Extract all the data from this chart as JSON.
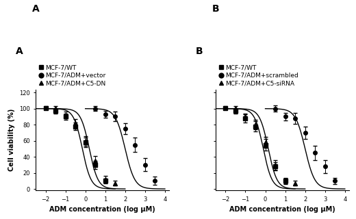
{
  "panel_A": {
    "label": "A",
    "legend": [
      "MCF-7/WT",
      "MCF-7/ADM+vector",
      "MCF-7/ADM+C5-DN"
    ],
    "markers": [
      "s",
      "o",
      "^"
    ],
    "series": [
      {
        "name": "MCF-7/WT",
        "x": [
          -2.0,
          -1.5,
          -1.0,
          -0.5,
          0.0,
          0.5,
          1.0
        ],
        "y": [
          101,
          97,
          90,
          78,
          58,
          30,
          10
        ],
        "yerr": [
          2,
          3,
          4,
          5,
          6,
          5,
          3
        ],
        "x50": -0.15,
        "slope": 2.0
      },
      {
        "name": "MCF-7/ADM+vector",
        "x": [
          0.5,
          1.0,
          1.5,
          2.0,
          2.5,
          3.0,
          3.5
        ],
        "y": [
          100,
          93,
          90,
          75,
          55,
          30,
          10
        ],
        "yerr": [
          3,
          4,
          6,
          7,
          9,
          8,
          5
        ],
        "x50": 2.0,
        "slope": 1.8
      },
      {
        "name": "MCF-7/ADM+C5-DN",
        "x": [
          -1.5,
          -1.0,
          -0.5,
          0.0,
          0.5,
          1.0,
          1.5
        ],
        "y": [
          101,
          92,
          82,
          60,
          35,
          12,
          7
        ],
        "yerr": [
          2,
          4,
          5,
          6,
          6,
          4,
          3
        ],
        "x50": 0.2,
        "slope": 2.0
      }
    ]
  },
  "panel_B": {
    "label": "B",
    "legend": [
      "MCF-7/WT",
      "MCF-7/ADM+scrambled",
      "MCF-7/ADM+C5-siRNA"
    ],
    "markers": [
      "s",
      "o",
      "^"
    ],
    "series": [
      {
        "name": "MCF-7/WT",
        "x": [
          -2.0,
          -1.5,
          -1.0,
          -0.5,
          0.0,
          0.5,
          1.0
        ],
        "y": [
          101,
          97,
          88,
          78,
          55,
          28,
          10
        ],
        "yerr": [
          2,
          3,
          5,
          6,
          7,
          5,
          3
        ],
        "x50": -0.1,
        "slope": 2.0
      },
      {
        "name": "MCF-7/ADM+scrambled",
        "x": [
          0.5,
          1.0,
          1.5,
          2.0,
          2.5,
          3.0,
          3.5
        ],
        "y": [
          100,
          90,
          88,
          70,
          45,
          28,
          10
        ],
        "yerr": [
          4,
          5,
          7,
          8,
          9,
          8,
          4
        ],
        "x50": 2.0,
        "slope": 1.8
      },
      {
        "name": "MCF-7/ADM+C5-siRNA",
        "x": [
          -1.5,
          -1.0,
          -0.5,
          0.0,
          0.5,
          1.0,
          1.5
        ],
        "y": [
          101,
          90,
          80,
          58,
          30,
          10,
          7
        ],
        "yerr": [
          2,
          4,
          6,
          7,
          6,
          4,
          3
        ],
        "x50": 0.15,
        "slope": 2.0
      }
    ]
  },
  "xlabel": "ADM concentration (log μM)",
  "ylabel": "Cell viability (%)",
  "xlim": [
    -2.5,
    4.2
  ],
  "ylim": [
    -2,
    124
  ],
  "yticks": [
    0,
    20,
    40,
    60,
    80,
    100,
    120
  ],
  "xticks": [
    -2,
    -1,
    0,
    1,
    2,
    3,
    4
  ],
  "color": "black",
  "markersize": 4,
  "linewidth": 1.0,
  "capsize": 2,
  "elinewidth": 0.7,
  "label_fontsize": 10,
  "tick_fontsize": 6,
  "axis_fontsize": 7,
  "legend_fontsize": 6.5
}
